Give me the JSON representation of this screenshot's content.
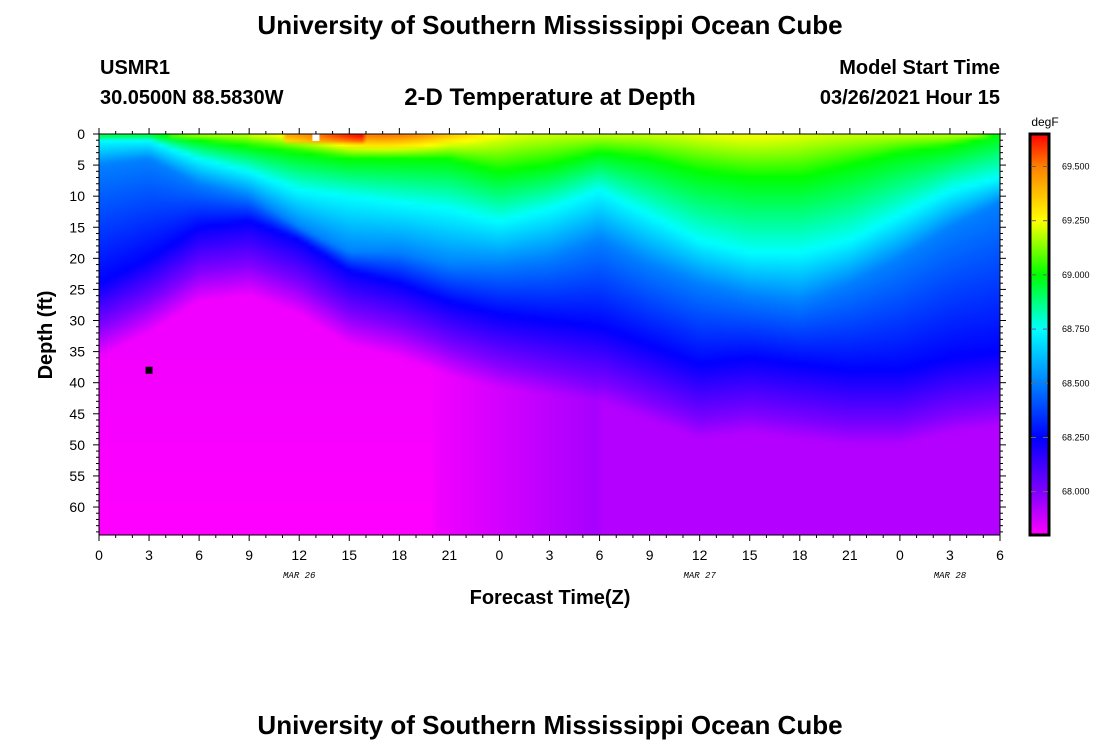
{
  "header": {
    "title": "University of Southern Mississippi Ocean Cube",
    "station_id": "USMR1",
    "coordinates": "30.0500N 88.5830W",
    "model_start_label": "Model Start Time",
    "model_start_value": "03/26/2021 Hour 15"
  },
  "footer": {
    "title": "University of Southern Mississippi Ocean Cube"
  },
  "chart_data": {
    "type": "heatmap",
    "title": "2-D Temperature at Depth",
    "xlabel": "Forecast Time(Z)",
    "ylabel": "Depth (ft)",
    "x_tick_labels": [
      "0",
      "3",
      "6",
      "9",
      "12",
      "15",
      "18",
      "21",
      "0",
      "3",
      "6",
      "9",
      "12",
      "15",
      "18",
      "21",
      "0",
      "3",
      "6"
    ],
    "x_range": [
      0,
      54
    ],
    "date_labels": [
      {
        "label": "MAR 26",
        "hour": 12
      },
      {
        "label": "MAR 27",
        "hour": 36
      },
      {
        "label": "MAR 28",
        "hour": 51
      }
    ],
    "y_ticks": [
      0,
      5,
      10,
      15,
      20,
      25,
      30,
      35,
      40,
      45,
      50,
      55,
      60
    ],
    "y_range": [
      0,
      64.5
    ],
    "colorbar": {
      "unit": "degF",
      "range": [
        67.8,
        69.65
      ],
      "ticks": [
        68.0,
        68.25,
        68.5,
        68.75,
        69.0,
        69.25,
        69.5
      ],
      "tick_labels": [
        "68.000",
        "68.250",
        "68.500",
        "68.750",
        "69.000",
        "69.250",
        "69.500"
      ]
    },
    "isotherm_depths_ft": {
      "hours": [
        0,
        3,
        6,
        9,
        12,
        15,
        18,
        21,
        24,
        27,
        30,
        33,
        36,
        39,
        42,
        45,
        48,
        51,
        54
      ],
      "t68_25": [
        24,
        20,
        15,
        14,
        17,
        22,
        24,
        27,
        29,
        30,
        31,
        34,
        37,
        36,
        37,
        38,
        38,
        36,
        35
      ],
      "t68_5": [
        5,
        4,
        8,
        10,
        15,
        19,
        19,
        21,
        21,
        20,
        17,
        21,
        24,
        26,
        27,
        24,
        20,
        15,
        11
      ],
      "t68_75": [
        1,
        1,
        4,
        6,
        9,
        10,
        11,
        12,
        14,
        12,
        9,
        13,
        17,
        19,
        19,
        17,
        13,
        9,
        7
      ],
      "t69_0": [
        0,
        0,
        1,
        2,
        3,
        4,
        4,
        4,
        6,
        5,
        3,
        4,
        6,
        7,
        7,
        5,
        3,
        2,
        0
      ]
    },
    "markers": [
      {
        "hour": 3,
        "depth_ft": 38,
        "color": "black"
      },
      {
        "hour": 13,
        "depth_ft": 0,
        "color": "white"
      }
    ]
  }
}
